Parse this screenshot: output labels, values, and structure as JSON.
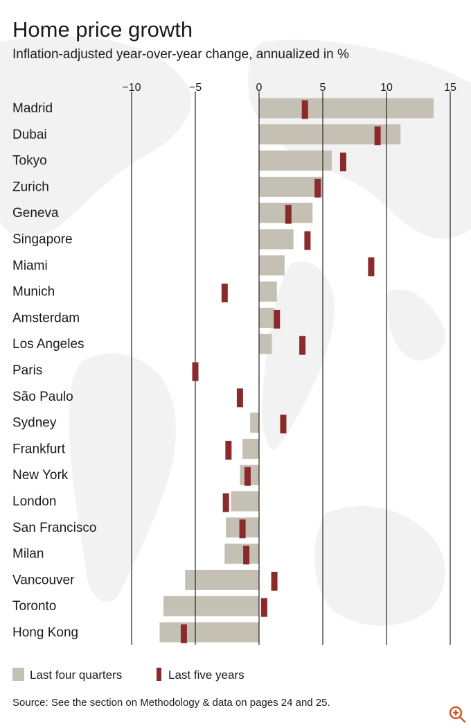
{
  "chart_data": {
    "type": "bar",
    "title": "Home price growth",
    "subtitle": "Inflation-adjusted year-over-year change, annualized in %",
    "xlim": [
      -10,
      15
    ],
    "xticks": [
      -10,
      -5,
      0,
      5,
      10,
      15
    ],
    "xtick_labels": [
      "−10",
      "−5",
      "0",
      "5",
      "10",
      "15"
    ],
    "grid": true,
    "legend_position": "bottom-left",
    "categories": [
      "Madrid",
      "Dubai",
      "Tokyo",
      "Zurich",
      "Geneva",
      "Singapore",
      "Miami",
      "Munich",
      "Amsterdam",
      "Los Angeles",
      "Paris",
      "São Paulo",
      "Sydney",
      "Frankfurt",
      "New York",
      "London",
      "San Francisco",
      "Milan",
      "Vancouver",
      "Toronto",
      "Hong Kong"
    ],
    "series": [
      {
        "name": "Last four quarters",
        "type": "bar",
        "color": "#c4c0b4",
        "values": [
          13.7,
          11.1,
          5.7,
          5.0,
          4.2,
          2.7,
          2.0,
          1.4,
          1.2,
          1.0,
          0.0,
          0.0,
          -0.7,
          -1.3,
          -1.5,
          -2.2,
          -2.6,
          -2.7,
          -5.8,
          -7.5,
          -7.8
        ]
      },
      {
        "name": "Last five years",
        "type": "marker",
        "color": "#8b2a2a",
        "values": [
          3.6,
          9.3,
          6.6,
          4.6,
          2.3,
          3.8,
          8.8,
          -2.7,
          1.4,
          3.4,
          -5.0,
          -1.5,
          1.9,
          -2.4,
          -0.9,
          -2.6,
          -1.3,
          -1.0,
          1.2,
          0.4,
          -5.9
        ]
      }
    ]
  },
  "legend": [
    {
      "label": "Last four quarters",
      "color": "#c4c0b4"
    },
    {
      "label": "Last five years",
      "color": "#8b2a2a"
    }
  ],
  "source": "Source: See the section on Methodology & data on pages 24 and 25.",
  "zoom_icon": "zoom-in-icon",
  "colors": {
    "bar": "#c4c0b4",
    "marker": "#8b2a2a",
    "grid": "#222222",
    "map": "#f3f3f3"
  }
}
